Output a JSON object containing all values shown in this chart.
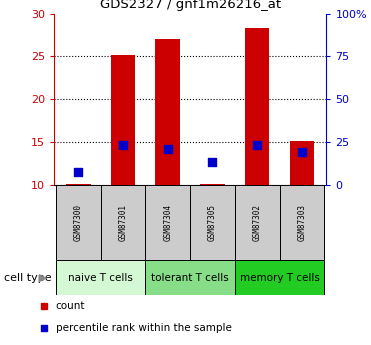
{
  "title": "GDS2327 / gnf1m26216_at",
  "samples": [
    "GSM87300",
    "GSM87301",
    "GSM87304",
    "GSM87305",
    "GSM87302",
    "GSM87303"
  ],
  "cell_types": [
    {
      "label": "naive T cells",
      "samples": [
        0,
        1
      ],
      "color": "#d4f7d4"
    },
    {
      "label": "tolerant T cells",
      "samples": [
        2,
        3
      ],
      "color": "#88dd88"
    },
    {
      "label": "memory T cells",
      "samples": [
        4,
        5
      ],
      "color": "#22cc22"
    }
  ],
  "count_values": [
    10.1,
    25.2,
    27.0,
    10.1,
    28.3,
    15.1
  ],
  "percentile_values_left_scale": [
    11.5,
    14.6,
    14.2,
    12.6,
    14.6,
    13.8
  ],
  "count_base": 10.0,
  "ylim_left": [
    10,
    30
  ],
  "ylim_right": [
    0,
    100
  ],
  "yticks_left": [
    10,
    15,
    20,
    25,
    30
  ],
  "yticks_right_vals": [
    0,
    25,
    50,
    75,
    100
  ],
  "ytick_labels_right": [
    "0",
    "25",
    "50",
    "75",
    "100%"
  ],
  "bar_color": "#cc0000",
  "dot_color": "#0000cc",
  "bar_width": 0.55,
  "dot_size": 30,
  "left_tick_color": "#cc0000",
  "right_tick_color": "#0000cc",
  "legend_count_label": "count",
  "legend_percentile_label": "percentile rank within the sample",
  "sample_box_color": "#cccccc",
  "cell_type_label": "cell type",
  "grid_yticks": [
    15,
    20,
    25
  ]
}
